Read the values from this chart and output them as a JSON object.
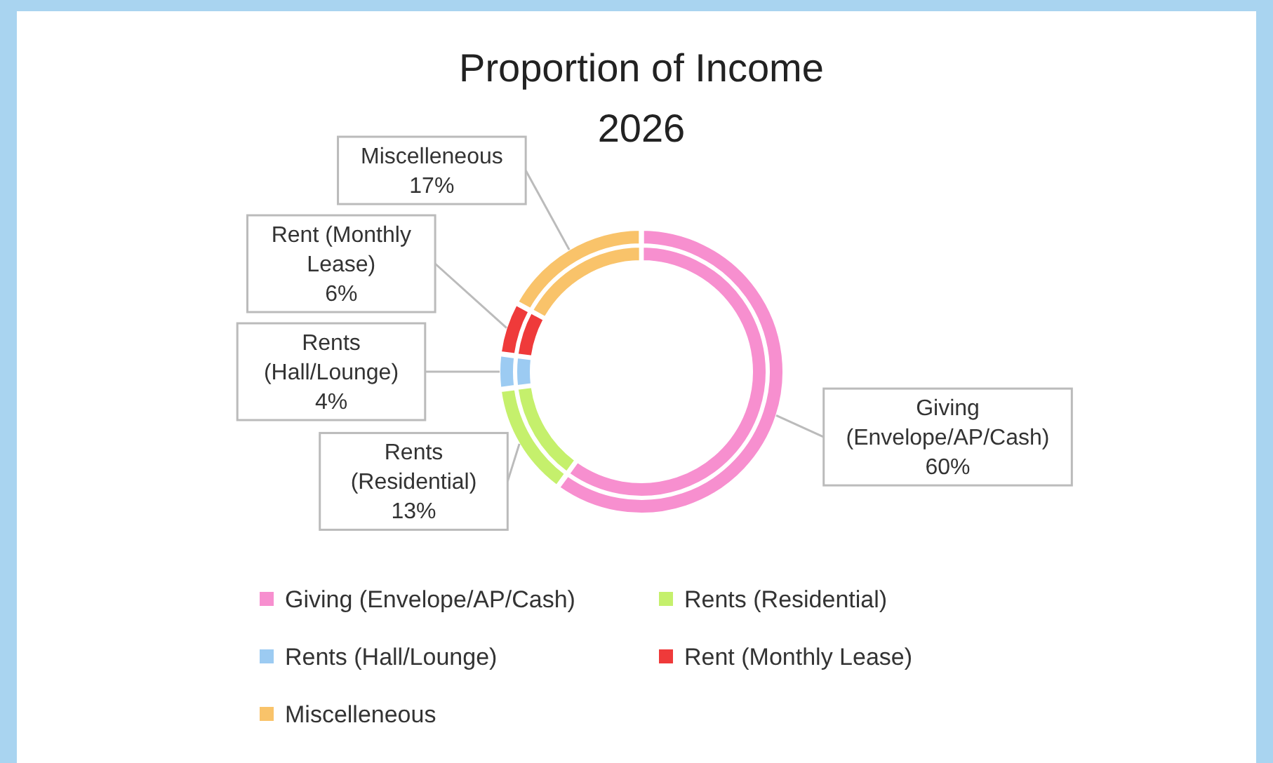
{
  "chart_data": {
    "type": "donut",
    "title": "Proportion of Income 2026",
    "categories": [
      "Giving (Envelope/AP/Cash)",
      "Rents (Residential)",
      "Rents (Hall/Lounge)",
      "Rent (Monthly Lease)",
      "Miscelleneous"
    ],
    "colors": [
      "#f78fcf",
      "#c5f06c",
      "#9ccbf2",
      "#ef3a3a",
      "#f9c36a"
    ],
    "series": [
      {
        "values": [
          60,
          13,
          4,
          6,
          17
        ],
        "value_labels": [
          "60%",
          "13%",
          "4%",
          "6%",
          "17%"
        ]
      },
      {
        "values": [
          60,
          13,
          4,
          6,
          17
        ]
      }
    ],
    "legend": "bottom"
  }
}
